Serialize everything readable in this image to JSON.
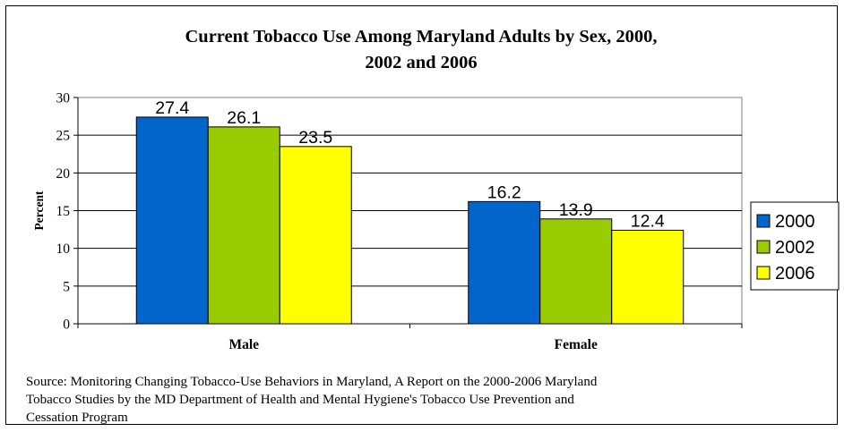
{
  "chart_data": {
    "type": "bar",
    "title_lines": [
      "Current Tobacco Use Among Maryland Adults by Sex, 2000,",
      "2002 and 2006"
    ],
    "categories": [
      "Male",
      "Female"
    ],
    "series": [
      {
        "name": "2000",
        "color": "#0066CC",
        "values": [
          27.4,
          16.2
        ]
      },
      {
        "name": "2002",
        "color": "#99CC00",
        "values": [
          26.1,
          13.9
        ]
      },
      {
        "name": "2006",
        "color": "#FFFF00",
        "values": [
          23.5,
          12.4
        ]
      }
    ],
    "data_labels": [
      [
        "27.4",
        "16.2"
      ],
      [
        "26.1",
        "13.9"
      ],
      [
        "23.5",
        "12.4"
      ]
    ],
    "ylabel": "Percent",
    "xlabel": "",
    "ylim": [
      0,
      30
    ],
    "yticks": [
      "0",
      "5",
      "10",
      "15",
      "20",
      "25",
      "30"
    ],
    "grid": true,
    "legend_position": "right"
  },
  "source_lines": [
    "Source: Monitoring Changing Tobacco-Use Behaviors in Maryland, A Report on the 2000-2006 Maryland",
    "Tobacco Studies by the MD Department of Health and Mental Hygiene's Tobacco Use Prevention and",
    "Cessation Program"
  ]
}
